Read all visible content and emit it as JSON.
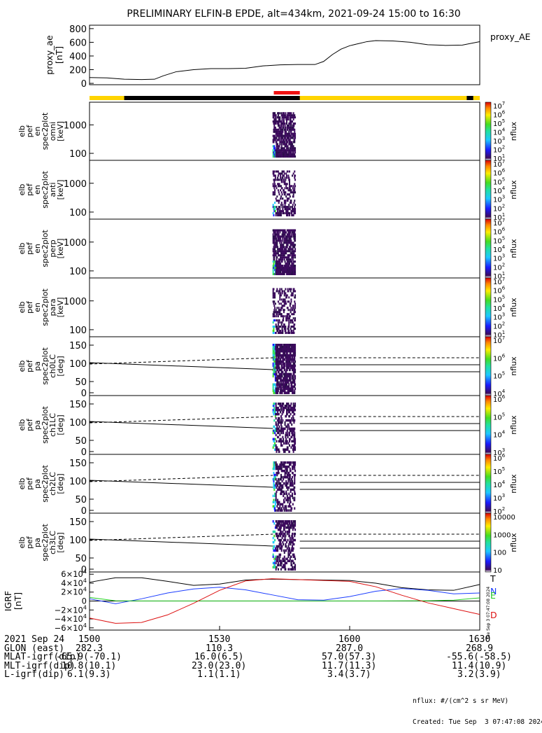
{
  "title": "PRELIMINARY ELFIN-B EPDE, alt=434km, 2021-09-24 15:00 to 16:30",
  "colors": {
    "yellow": "#ffd400",
    "black": "#000000",
    "red": "#ee1111",
    "T": "#000000",
    "N": "#1a3cff",
    "E": "#22cc22",
    "D": "#dd1111"
  },
  "chart_data": [
    {
      "type": "line",
      "panel": "proxy_ae",
      "ylabel": [
        "proxy_ae",
        "[nT]"
      ],
      "legend": "proxy_AE",
      "yticks": [
        "800",
        "600",
        "400",
        "200",
        "0"
      ],
      "ylim": [
        -20,
        850
      ],
      "x_minutes": [
        0,
        4,
        8,
        12,
        15,
        17,
        20,
        24,
        28,
        32,
        36,
        40,
        44,
        48,
        52,
        54,
        56,
        58,
        60,
        62,
        64,
        66,
        70,
        74,
        78,
        82,
        86,
        90
      ],
      "values": [
        85,
        80,
        60,
        55,
        60,
        110,
        170,
        200,
        215,
        215,
        220,
        255,
        270,
        275,
        275,
        320,
        420,
        500,
        550,
        580,
        610,
        625,
        620,
        600,
        565,
        555,
        560,
        610
      ]
    },
    {
      "type": "heatmap",
      "panel": "omni",
      "ylabel": [
        "elb",
        "pef",
        "en",
        "spec2plot",
        "omni",
        "[keV]"
      ],
      "yticks": [
        "1000",
        "100"
      ],
      "cbar": {
        "label": "nflux",
        "ticks": [
          "10^7",
          "10^6",
          "10^5",
          "10^4",
          "10^3",
          "10^2",
          "10^1"
        ]
      }
    },
    {
      "type": "heatmap",
      "panel": "anti",
      "ylabel": [
        "elb",
        "pef",
        "en",
        "spec2plot",
        "anti",
        "[keV]"
      ],
      "yticks": [
        "1000",
        "100"
      ],
      "cbar": {
        "label": "nflux",
        "ticks": [
          "10^7",
          "10^6",
          "10^5",
          "10^4",
          "10^3",
          "10^2",
          "10^1"
        ]
      }
    },
    {
      "type": "heatmap",
      "panel": "perp",
      "ylabel": [
        "elb",
        "pef",
        "en",
        "spec2plot",
        "perp",
        "[keV]"
      ],
      "yticks": [
        "1000",
        "100"
      ],
      "cbar": {
        "label": "nflux",
        "ticks": [
          "10^7",
          "10^6",
          "10^5",
          "10^4",
          "10^3",
          "10^2",
          "10^1"
        ]
      }
    },
    {
      "type": "heatmap",
      "panel": "para",
      "ylabel": [
        "elb",
        "pef",
        "en",
        "spec2plot",
        "para",
        "[keV]"
      ],
      "yticks": [
        "1000",
        "100"
      ],
      "cbar": {
        "label": "nflux",
        "ticks": [
          "10^7",
          "10^6",
          "10^5",
          "10^4",
          "10^3",
          "10^2",
          "10^1"
        ]
      }
    },
    {
      "type": "heatmap",
      "panel": "ch0LC",
      "ylabel": [
        "elb",
        "pef",
        "pa",
        "spec2plot",
        "ch0LC",
        "[deg]"
      ],
      "yticks": [
        "150",
        "100",
        "50",
        "0"
      ],
      "cbar": {
        "label": "nflux",
        "ticks": [
          "10^7",
          "10^6",
          "10^5",
          "10^4"
        ]
      }
    },
    {
      "type": "heatmap",
      "panel": "ch1LC",
      "ylabel": [
        "elb",
        "pef",
        "pa",
        "spec2plot",
        "ch1LC",
        "[deg]"
      ],
      "yticks": [
        "150",
        "100",
        "50",
        "0"
      ],
      "cbar": {
        "label": "nflux",
        "ticks": [
          "10^6",
          "10^5",
          "10^4",
          "10^3"
        ]
      }
    },
    {
      "type": "heatmap",
      "panel": "ch2LC",
      "ylabel": [
        "elb",
        "pef",
        "pa",
        "spec2plot",
        "ch2LC",
        "[deg]"
      ],
      "yticks": [
        "150",
        "100",
        "50",
        "0"
      ],
      "cbar": {
        "label": "nflux",
        "ticks": [
          "10^6",
          "10^5",
          "10^4",
          "10^3",
          "10^2"
        ]
      }
    },
    {
      "type": "heatmap",
      "panel": "ch3LC",
      "ylabel": [
        "elb",
        "pef",
        "pa",
        "spec2plot",
        "ch3LC",
        "[deg]"
      ],
      "yticks": [
        "150",
        "100",
        "50",
        "0"
      ],
      "cbar": {
        "label": "nflux",
        "ticks": [
          "10000",
          "1000",
          "100",
          "10"
        ]
      }
    },
    {
      "type": "line",
      "panel": "igrf",
      "ylabel": [
        "IGRF",
        "[nT]"
      ],
      "yticks": [
        "6×10^4",
        "4×10^4",
        "2×10^4",
        "0",
        "−2×10^4",
        "−4×10^4",
        "−6×10^4"
      ],
      "ylim": [
        -65000,
        65000
      ],
      "legend": [
        "T",
        "N",
        "E",
        "D"
      ],
      "x_minutes": [
        0,
        6,
        12,
        18,
        24,
        30,
        36,
        42,
        48,
        54,
        60,
        66,
        72,
        78,
        84,
        90
      ],
      "series": [
        {
          "name": "T",
          "values": [
            42000,
            52000,
            52000,
            44000,
            35000,
            38000,
            47000,
            49000,
            48000,
            47000,
            46000,
            40000,
            30000,
            25000,
            24000,
            37000
          ]
        },
        {
          "name": "N",
          "values": [
            5000,
            -6000,
            5000,
            18000,
            27000,
            31000,
            25000,
            14000,
            3000,
            2000,
            10000,
            22000,
            28000,
            24000,
            16000,
            18000
          ]
        },
        {
          "name": "E",
          "values": [
            8000,
            600,
            200,
            100,
            100,
            100,
            100,
            100,
            100,
            100,
            100,
            100,
            300,
            600,
            2000,
            7000
          ]
        },
        {
          "name": "D",
          "values": [
            -38000,
            -50000,
            -48000,
            -31000,
            -5000,
            24000,
            45000,
            50000,
            48000,
            46000,
            44000,
            32000,
            13000,
            -4000,
            -17000,
            -30000
          ]
        }
      ]
    }
  ],
  "timestamp": "Tue Sep  3 07:47:08 2024",
  "footer": {
    "rows": [
      {
        "label": "2021 Sep 24",
        "values": [
          "1500",
          "1530",
          "1600",
          "1630"
        ]
      },
      {
        "label": "GLON (east)",
        "values": [
          "282.3",
          "110.3",
          "287.0",
          "268.9"
        ]
      },
      {
        "label": "MLAT-igrf(dip)",
        "values": [
          "-65.9(-70.1)",
          "16.0(6.5)",
          "57.0(57.3)",
          "-55.6(-58.5)"
        ]
      },
      {
        "label": "MLT-igrf(dip)",
        "values": [
          "10.8(10.1)",
          "23.0(23.0)",
          "11.7(11.3)",
          "11.4(10.9)"
        ]
      },
      {
        "label": "L-igrf(dip)",
        "values": [
          "6.1(9.3)",
          "1.1(1.1)",
          "3.4(3.7)",
          "3.2(3.9)"
        ]
      }
    ],
    "units": "nflux: #/(cm^2 s sr MeV)",
    "created": "Created: Tue Sep  3 07:47:08 2024"
  }
}
